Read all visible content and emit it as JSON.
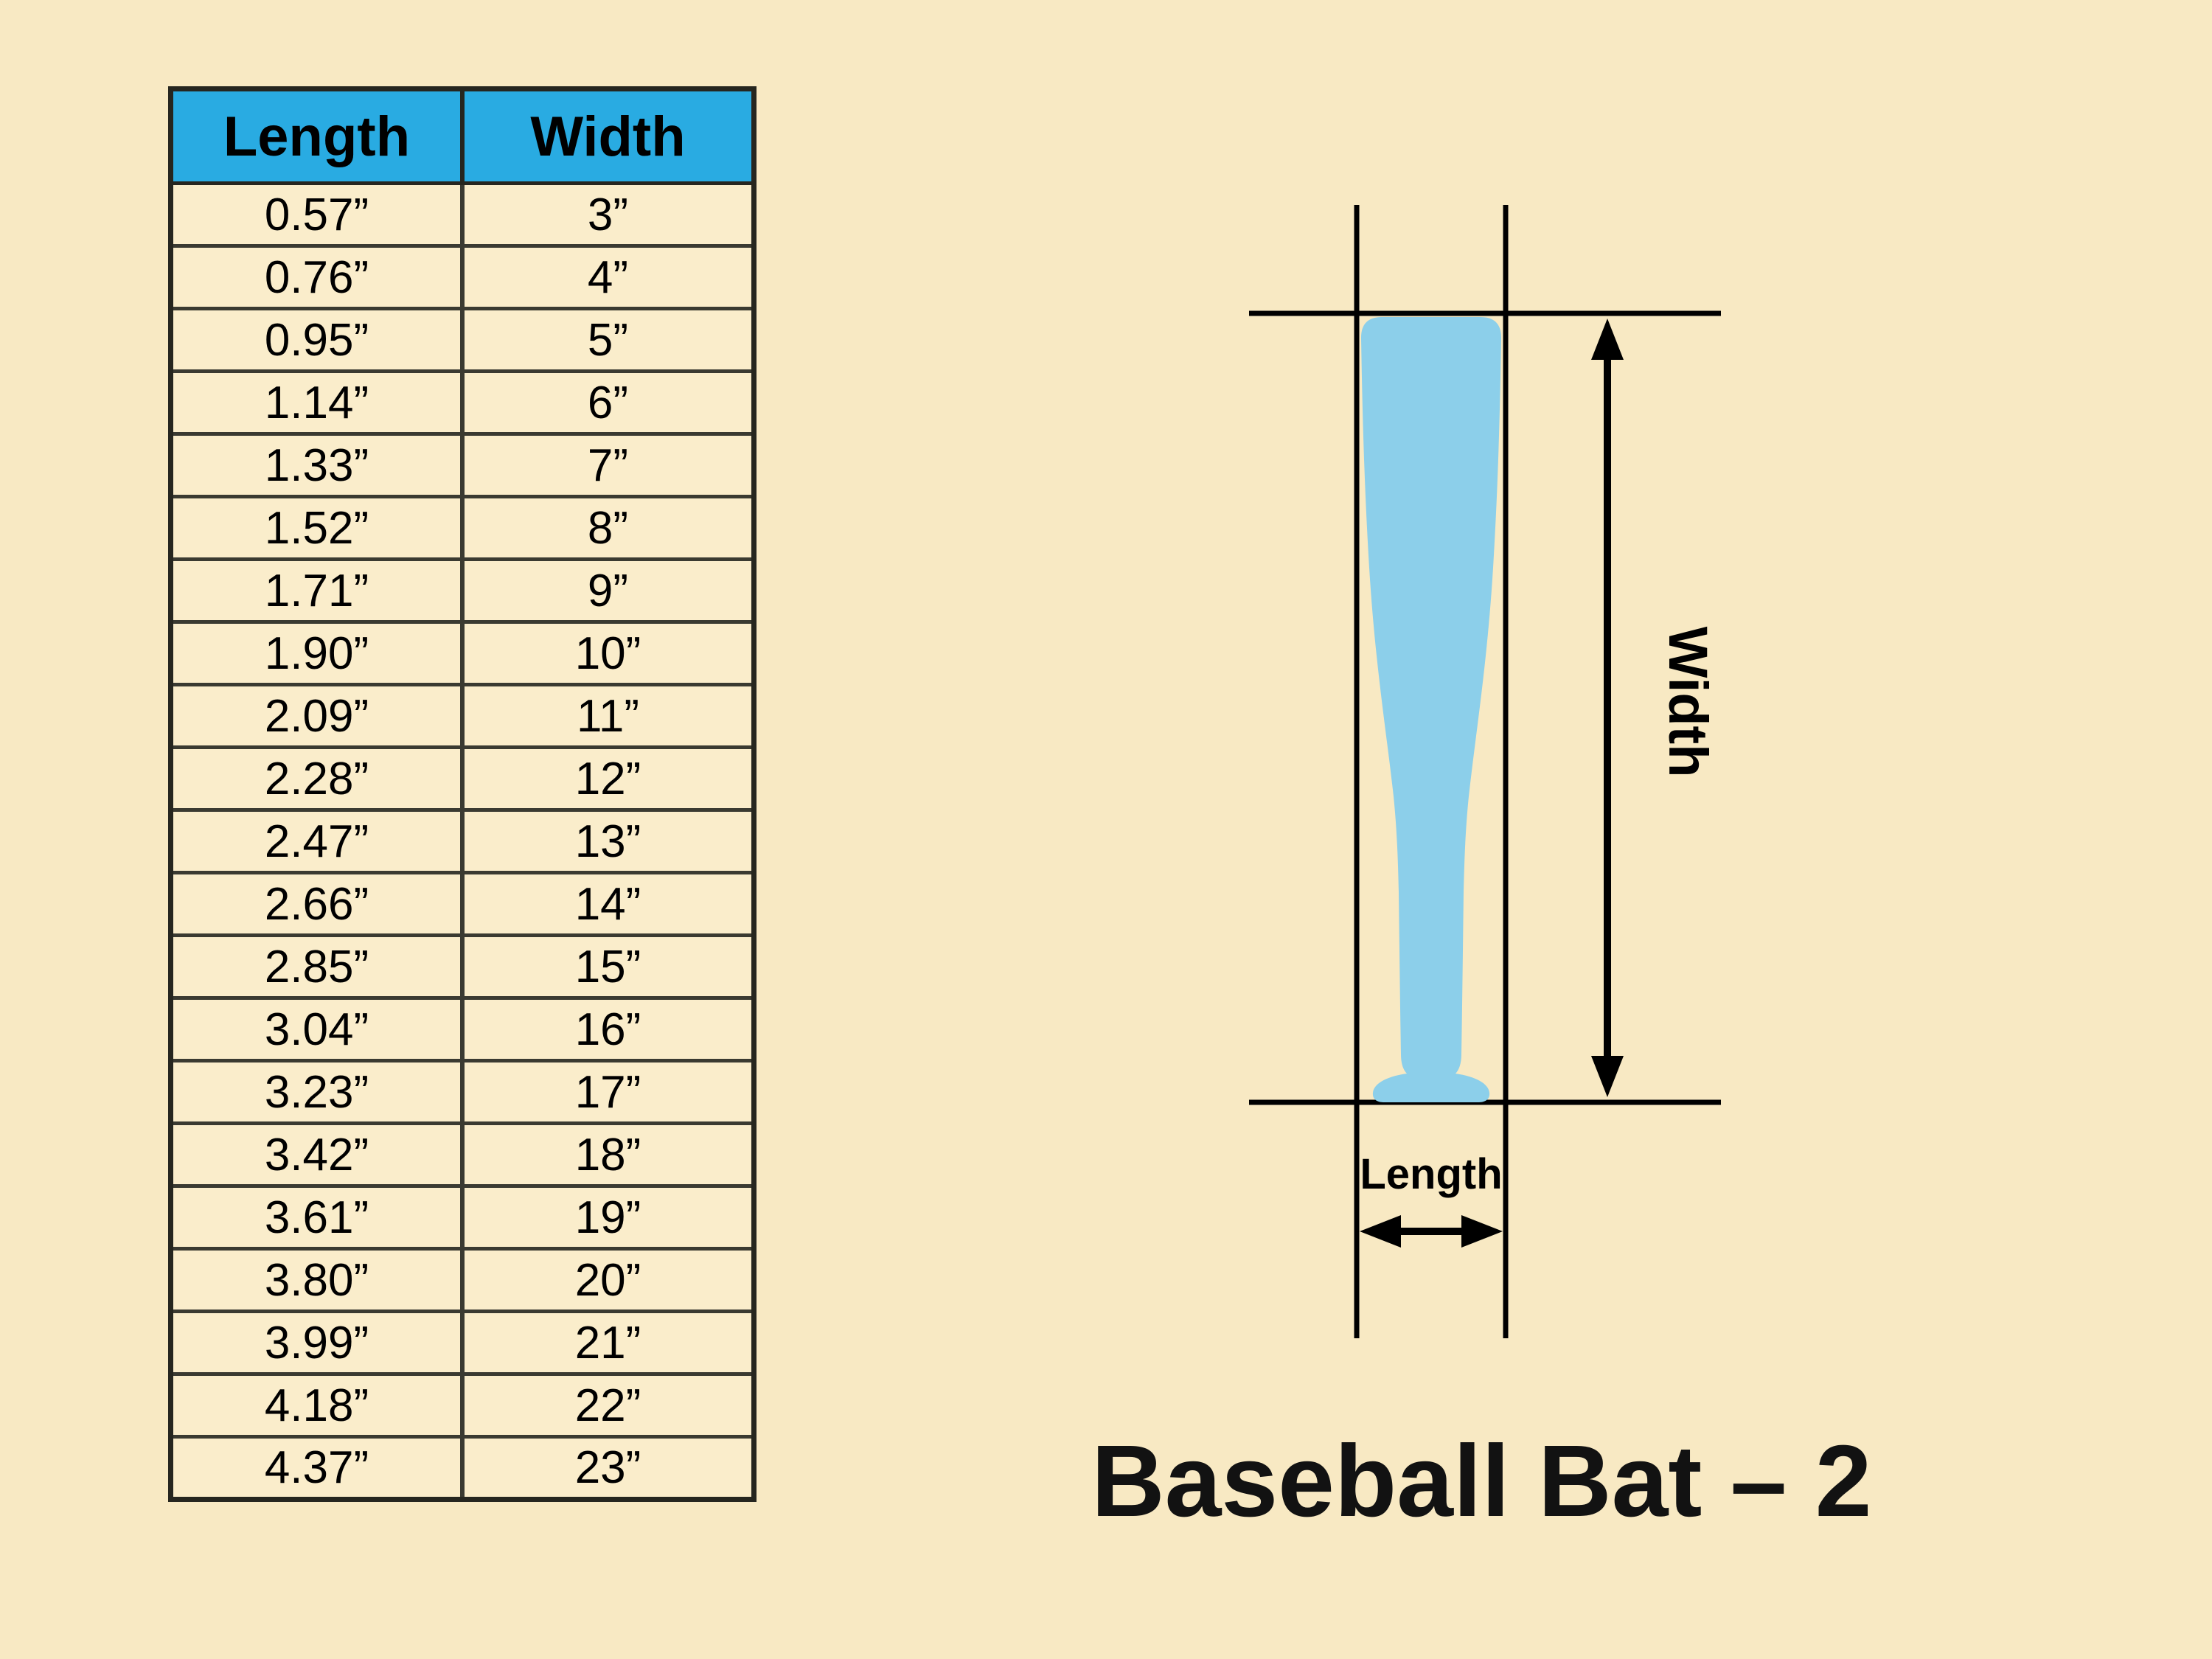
{
  "page": {
    "title": "Baseball Bat – 2",
    "background": "#F8E9C3"
  },
  "table": {
    "header_bg": "#29ABE2",
    "cell_bg": "#FAEDCB",
    "headers": [
      "Length",
      "Width"
    ],
    "rows": [
      [
        "0.57”",
        "3”"
      ],
      [
        "0.76”",
        "4”"
      ],
      [
        "0.95”",
        "5”"
      ],
      [
        "1.14”",
        "6”"
      ],
      [
        "1.33”",
        "7”"
      ],
      [
        "1.52”",
        "8”"
      ],
      [
        "1.71”",
        "9”"
      ],
      [
        "1.90”",
        "10”"
      ],
      [
        "2.09”",
        "11”"
      ],
      [
        "2.28”",
        "12”"
      ],
      [
        "2.47”",
        "13”"
      ],
      [
        "2.66”",
        "14”"
      ],
      [
        "2.85”",
        "15”"
      ],
      [
        "3.04”",
        "16”"
      ],
      [
        "3.23”",
        "17”"
      ],
      [
        "3.42”",
        "18”"
      ],
      [
        "3.61”",
        "19”"
      ],
      [
        "3.80”",
        "20”"
      ],
      [
        "3.99”",
        "21”"
      ],
      [
        "4.18”",
        "22”"
      ],
      [
        "4.37”",
        "23”"
      ]
    ]
  },
  "diagram": {
    "width_label": "Width",
    "length_label": "Length",
    "bat_color": "#8CCFEA",
    "line_color": "#000000"
  },
  "chart_data": {
    "type": "table",
    "title": "Baseball Bat – 2",
    "columns": [
      "Length",
      "Width"
    ],
    "rows": [
      [
        0.57,
        3
      ],
      [
        0.76,
        4
      ],
      [
        0.95,
        5
      ],
      [
        1.14,
        6
      ],
      [
        1.33,
        7
      ],
      [
        1.52,
        8
      ],
      [
        1.71,
        9
      ],
      [
        1.9,
        10
      ],
      [
        2.09,
        11
      ],
      [
        2.28,
        12
      ],
      [
        2.47,
        13
      ],
      [
        2.66,
        14
      ],
      [
        2.85,
        15
      ],
      [
        3.04,
        16
      ],
      [
        3.23,
        17
      ],
      [
        3.42,
        18
      ],
      [
        3.61,
        19
      ],
      [
        3.8,
        20
      ],
      [
        3.99,
        21
      ],
      [
        4.18,
        22
      ],
      [
        4.37,
        23
      ]
    ],
    "units": "inches"
  }
}
